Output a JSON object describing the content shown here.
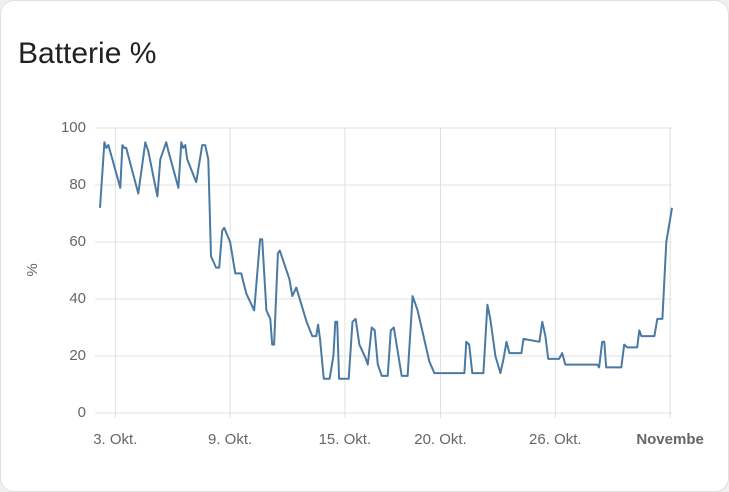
{
  "chart_data": {
    "type": "line",
    "title": "Batterie %",
    "ylabel": "%",
    "color": "#4a79a3",
    "x": [
      2.2,
      2.43,
      2.53,
      2.64,
      2.85,
      3.26,
      3.37,
      3.47,
      3.57,
      4.2,
      4.57,
      4.72,
      5.2,
      5.35,
      5.66,
      5.77,
      6.3,
      6.45,
      6.55,
      6.66,
      6.76,
      7.23,
      7.54,
      7.7,
      7.86,
      8.0,
      8.27,
      8.43,
      8.59,
      8.69,
      9.0,
      9.27,
      9.58,
      9.84,
      10.26,
      10.57,
      10.68,
      10.9,
      11.1,
      11.2,
      11.3,
      11.5,
      11.6,
      12.1,
      12.25,
      12.46,
      13.0,
      13.3,
      13.5,
      13.6,
      13.7,
      13.9,
      14.2,
      14.4,
      14.5,
      14.6,
      14.7,
      15.2,
      15.4,
      15.56,
      15.76,
      16.1,
      16.2,
      16.4,
      16.56,
      16.72,
      16.93,
      17.24,
      17.4,
      17.56,
      17.97,
      18.28,
      18.54,
      18.8,
      19.42,
      19.68,
      21.25,
      21.35,
      21.5,
      21.66,
      22.24,
      22.45,
      22.6,
      22.87,
      23.13,
      23.29,
      23.45,
      23.6,
      24.23,
      24.34,
      25.17,
      25.32,
      25.48,
      25.63,
      26.2,
      26.36,
      26.52,
      28.19,
      28.29,
      28.45,
      28.56,
      28.66,
      29.45,
      29.6,
      29.76,
      30.28,
      30.39,
      30.5,
      31.18,
      31.33,
      31.6,
      31.8,
      32.1
    ],
    "values": [
      72,
      95,
      93,
      94,
      89,
      79,
      94,
      93,
      93,
      77,
      95,
      92,
      76,
      89,
      95,
      92,
      79,
      95,
      93,
      94,
      89,
      81,
      94,
      94,
      89,
      55,
      51,
      51,
      64,
      65,
      60,
      49,
      49,
      42,
      36,
      61,
      61,
      36,
      33,
      24,
      24,
      56,
      57,
      47,
      41,
      44,
      32,
      27,
      27,
      31,
      26,
      12,
      12,
      20,
      32,
      32,
      12,
      12,
      32,
      33,
      24,
      19,
      17,
      30,
      29,
      17,
      13,
      13,
      29,
      30,
      13,
      13,
      41,
      36,
      18,
      14,
      14,
      25,
      24,
      14,
      14,
      38,
      33,
      20,
      14,
      19,
      25,
      21,
      21,
      26,
      25,
      32,
      27,
      19,
      19,
      21,
      17,
      17,
      16,
      25,
      25,
      16,
      16,
      24,
      23,
      23,
      29,
      27,
      27,
      33,
      33,
      60,
      72
    ],
    "xlim": [
      2.2,
      32.1
    ],
    "xticks": [
      {
        "value": 3,
        "label": "3. Okt."
      },
      {
        "value": 9,
        "label": "9. Okt."
      },
      {
        "value": 15,
        "label": "15. Okt."
      },
      {
        "value": 20,
        "label": "20. Okt."
      },
      {
        "value": 26,
        "label": "26. Okt."
      },
      {
        "value": 32,
        "label": "Novembe"
      }
    ],
    "ylim": [
      0,
      100
    ],
    "yticks": [
      0,
      20,
      40,
      60,
      80,
      100
    ],
    "grid": true
  }
}
